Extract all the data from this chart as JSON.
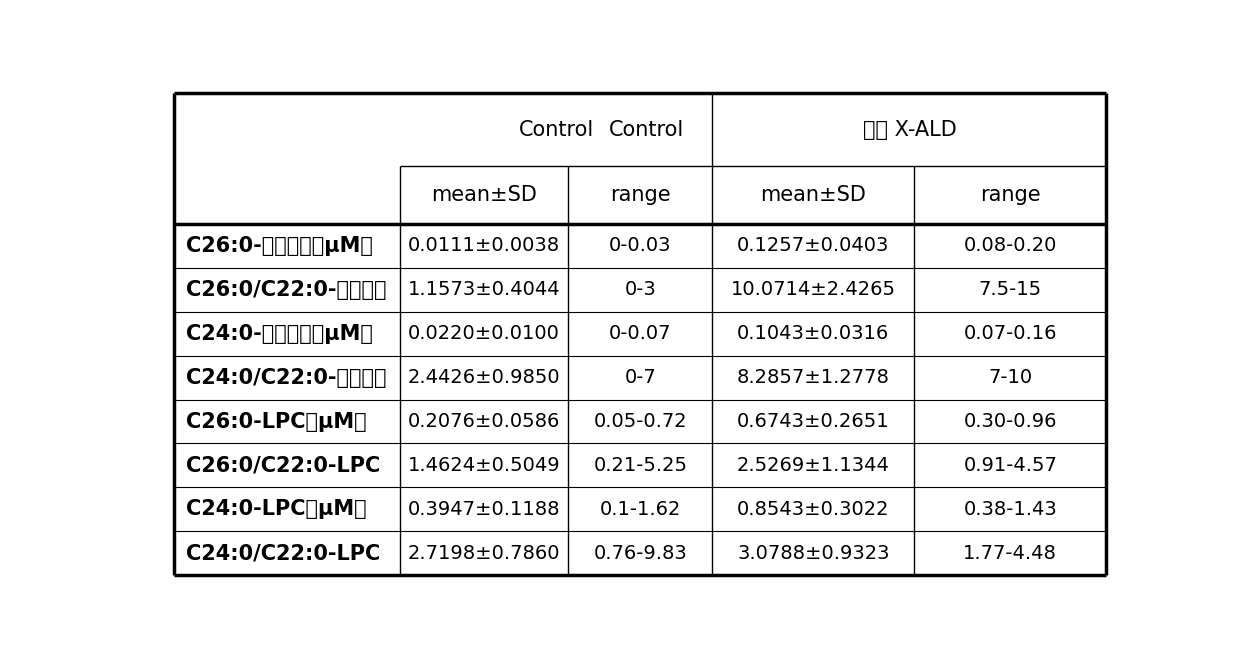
{
  "col_group1_header": "Control",
  "col_group2_header": "脑型 X-ALD",
  "col_headers": [
    "mean±SD",
    "range",
    "mean±SD",
    "range"
  ],
  "rows": [
    [
      "C26:0-酰基肉碱（μM）",
      "0.0111±0.0038",
      "0-0.03",
      "0.1257±0.0403",
      "0.08-0.20"
    ],
    [
      "C26:0/C22:0-酰基肉碱",
      "1.1573±0.4044",
      "0-3",
      "10.0714±2.4265",
      "7.5-15"
    ],
    [
      "C24:0-酰基肉碱（μM）",
      "0.0220±0.0100",
      "0-0.07",
      "0.1043±0.0316",
      "0.07-0.16"
    ],
    [
      "C24:0/C22:0-酰基肉碱",
      "2.4426±0.9850",
      "0-7",
      "8.2857±1.2778",
      "7-10"
    ],
    [
      "C26:0-LPC（μM）",
      "0.2076±0.0586",
      "0.05-0.72",
      "0.6743±0.2651",
      "0.30-0.96"
    ],
    [
      "C26:0/C22:0-LPC",
      "1.4624±0.5049",
      "0.21-5.25",
      "2.5269±1.1344",
      "0.91-4.57"
    ],
    [
      "C24:0-LPC（μM）",
      "0.3947±0.1188",
      "0.1-1.62",
      "0.8543±0.3022",
      "0.38-1.43"
    ],
    [
      "C24:0/C22:0-LPC",
      "2.7198±0.7860",
      "0.76-9.83",
      "3.0788±0.9323",
      "1.77-4.48"
    ]
  ],
  "background_color": "#ffffff",
  "text_color": "#000000",
  "font_size": 14,
  "header_font_size": 15,
  "label_font_size": 15
}
